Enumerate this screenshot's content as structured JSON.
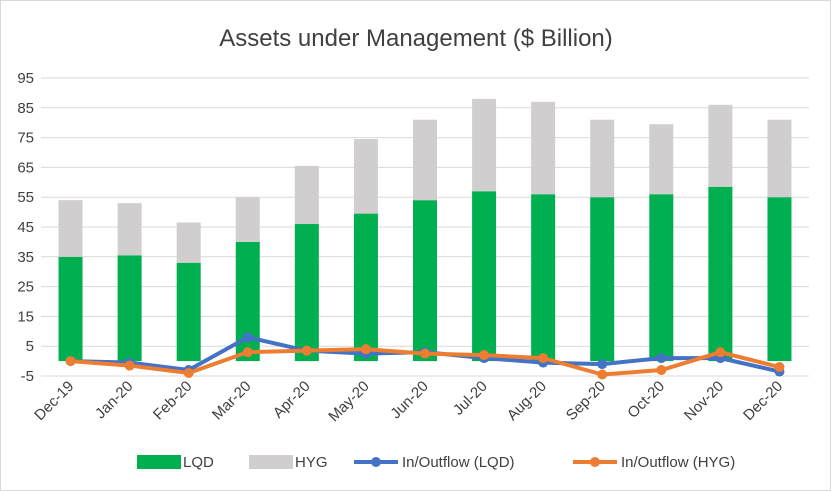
{
  "chart_data": {
    "type": "bar",
    "title": "Assets under Management ($ Billion)",
    "categories": [
      "Dec-19",
      "Jan-20",
      "Feb-20",
      "Mar-20",
      "Apr-20",
      "May-20",
      "Jun-20",
      "Jul-20",
      "Aug-20",
      "Sep-20",
      "Oct-20",
      "Nov-20",
      "Dec-20"
    ],
    "ylim": [
      -5,
      95
    ],
    "yticks": [
      -5,
      5,
      15,
      25,
      35,
      45,
      55,
      65,
      75,
      85,
      95
    ],
    "ytick_labels": [
      "-5",
      "5",
      "15",
      "25",
      "35",
      "45",
      "55",
      "65",
      "75",
      "85",
      "95"
    ],
    "grid": true,
    "legend_position": "bottom",
    "series": [
      {
        "name": "LQD",
        "kind": "stacked-bar",
        "color": "#00b050",
        "values": [
          35,
          35.5,
          33,
          40,
          46,
          49.5,
          54,
          57,
          56,
          55,
          56,
          58.5,
          55
        ]
      },
      {
        "name": "HYG",
        "kind": "stacked-bar",
        "color": "#d0cece",
        "values": [
          19,
          17.5,
          13.5,
          15,
          19.5,
          25,
          27,
          31,
          31,
          26,
          23.5,
          27.5,
          26
        ]
      },
      {
        "name": "In/Outflow (LQD)",
        "kind": "line",
        "color": "#4472c4",
        "values": [
          0,
          -0.5,
          -3,
          8,
          3.5,
          2.5,
          3,
          1,
          -0.5,
          -1,
          1,
          1,
          -3.5
        ]
      },
      {
        "name": "In/Outflow (HYG)",
        "kind": "line",
        "color": "#ed7d31",
        "values": [
          0,
          -1.5,
          -4,
          3,
          3.5,
          4,
          2.5,
          2,
          1,
          -4.5,
          -3,
          3,
          -2
        ]
      }
    ]
  }
}
